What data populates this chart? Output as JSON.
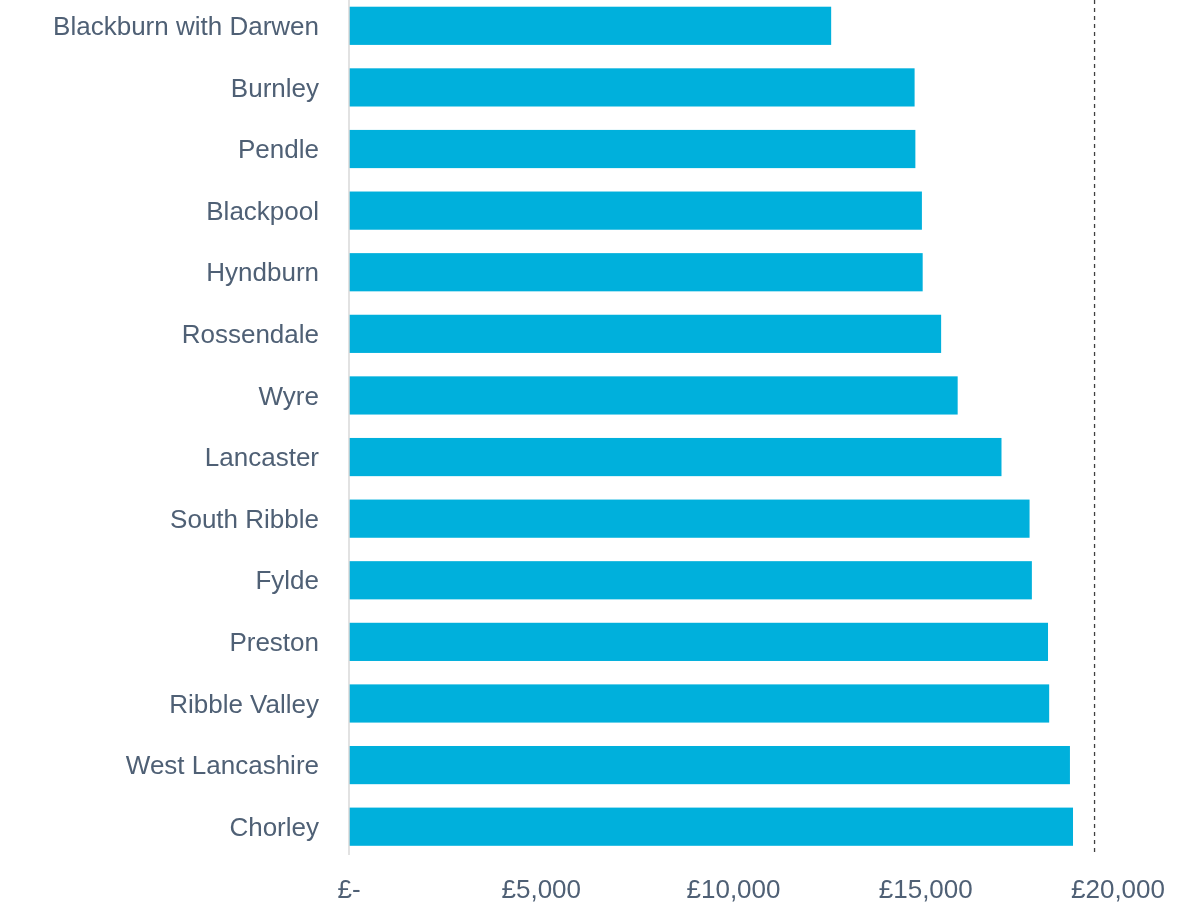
{
  "chart_data": {
    "type": "bar",
    "orientation": "horizontal",
    "categories": [
      "Blackburn with Darwen",
      "Burnley",
      "Pendle",
      "Blackpool",
      "Hyndburn",
      "Rossendale",
      "Wyre",
      "Lancaster",
      "South Ribble",
      "Fylde",
      "Preston",
      "Ribble Valley",
      "West Lancashire",
      "Chorley"
    ],
    "series": [
      {
        "color": "#00b0dc",
        "values": [
          12540,
          14710,
          14730,
          14900,
          14920,
          15400,
          15830,
          16970,
          17700,
          17760,
          18180,
          18210,
          18750,
          18830
        ]
      }
    ],
    "xlim": [
      0,
      20000
    ],
    "xticks": [
      {
        "value": 0,
        "label": "£-"
      },
      {
        "value": 5000,
        "label": "£5,000"
      },
      {
        "value": 10000,
        "label": "£10,000"
      },
      {
        "value": 15000,
        "label": "£15,000"
      },
      {
        "value": 20000,
        "label": "£20,000"
      }
    ],
    "ref_lines": [
      {
        "axis": "x",
        "value": 19390,
        "color": "#404040",
        "line_style": "dashed"
      }
    ],
    "grid": false
  }
}
